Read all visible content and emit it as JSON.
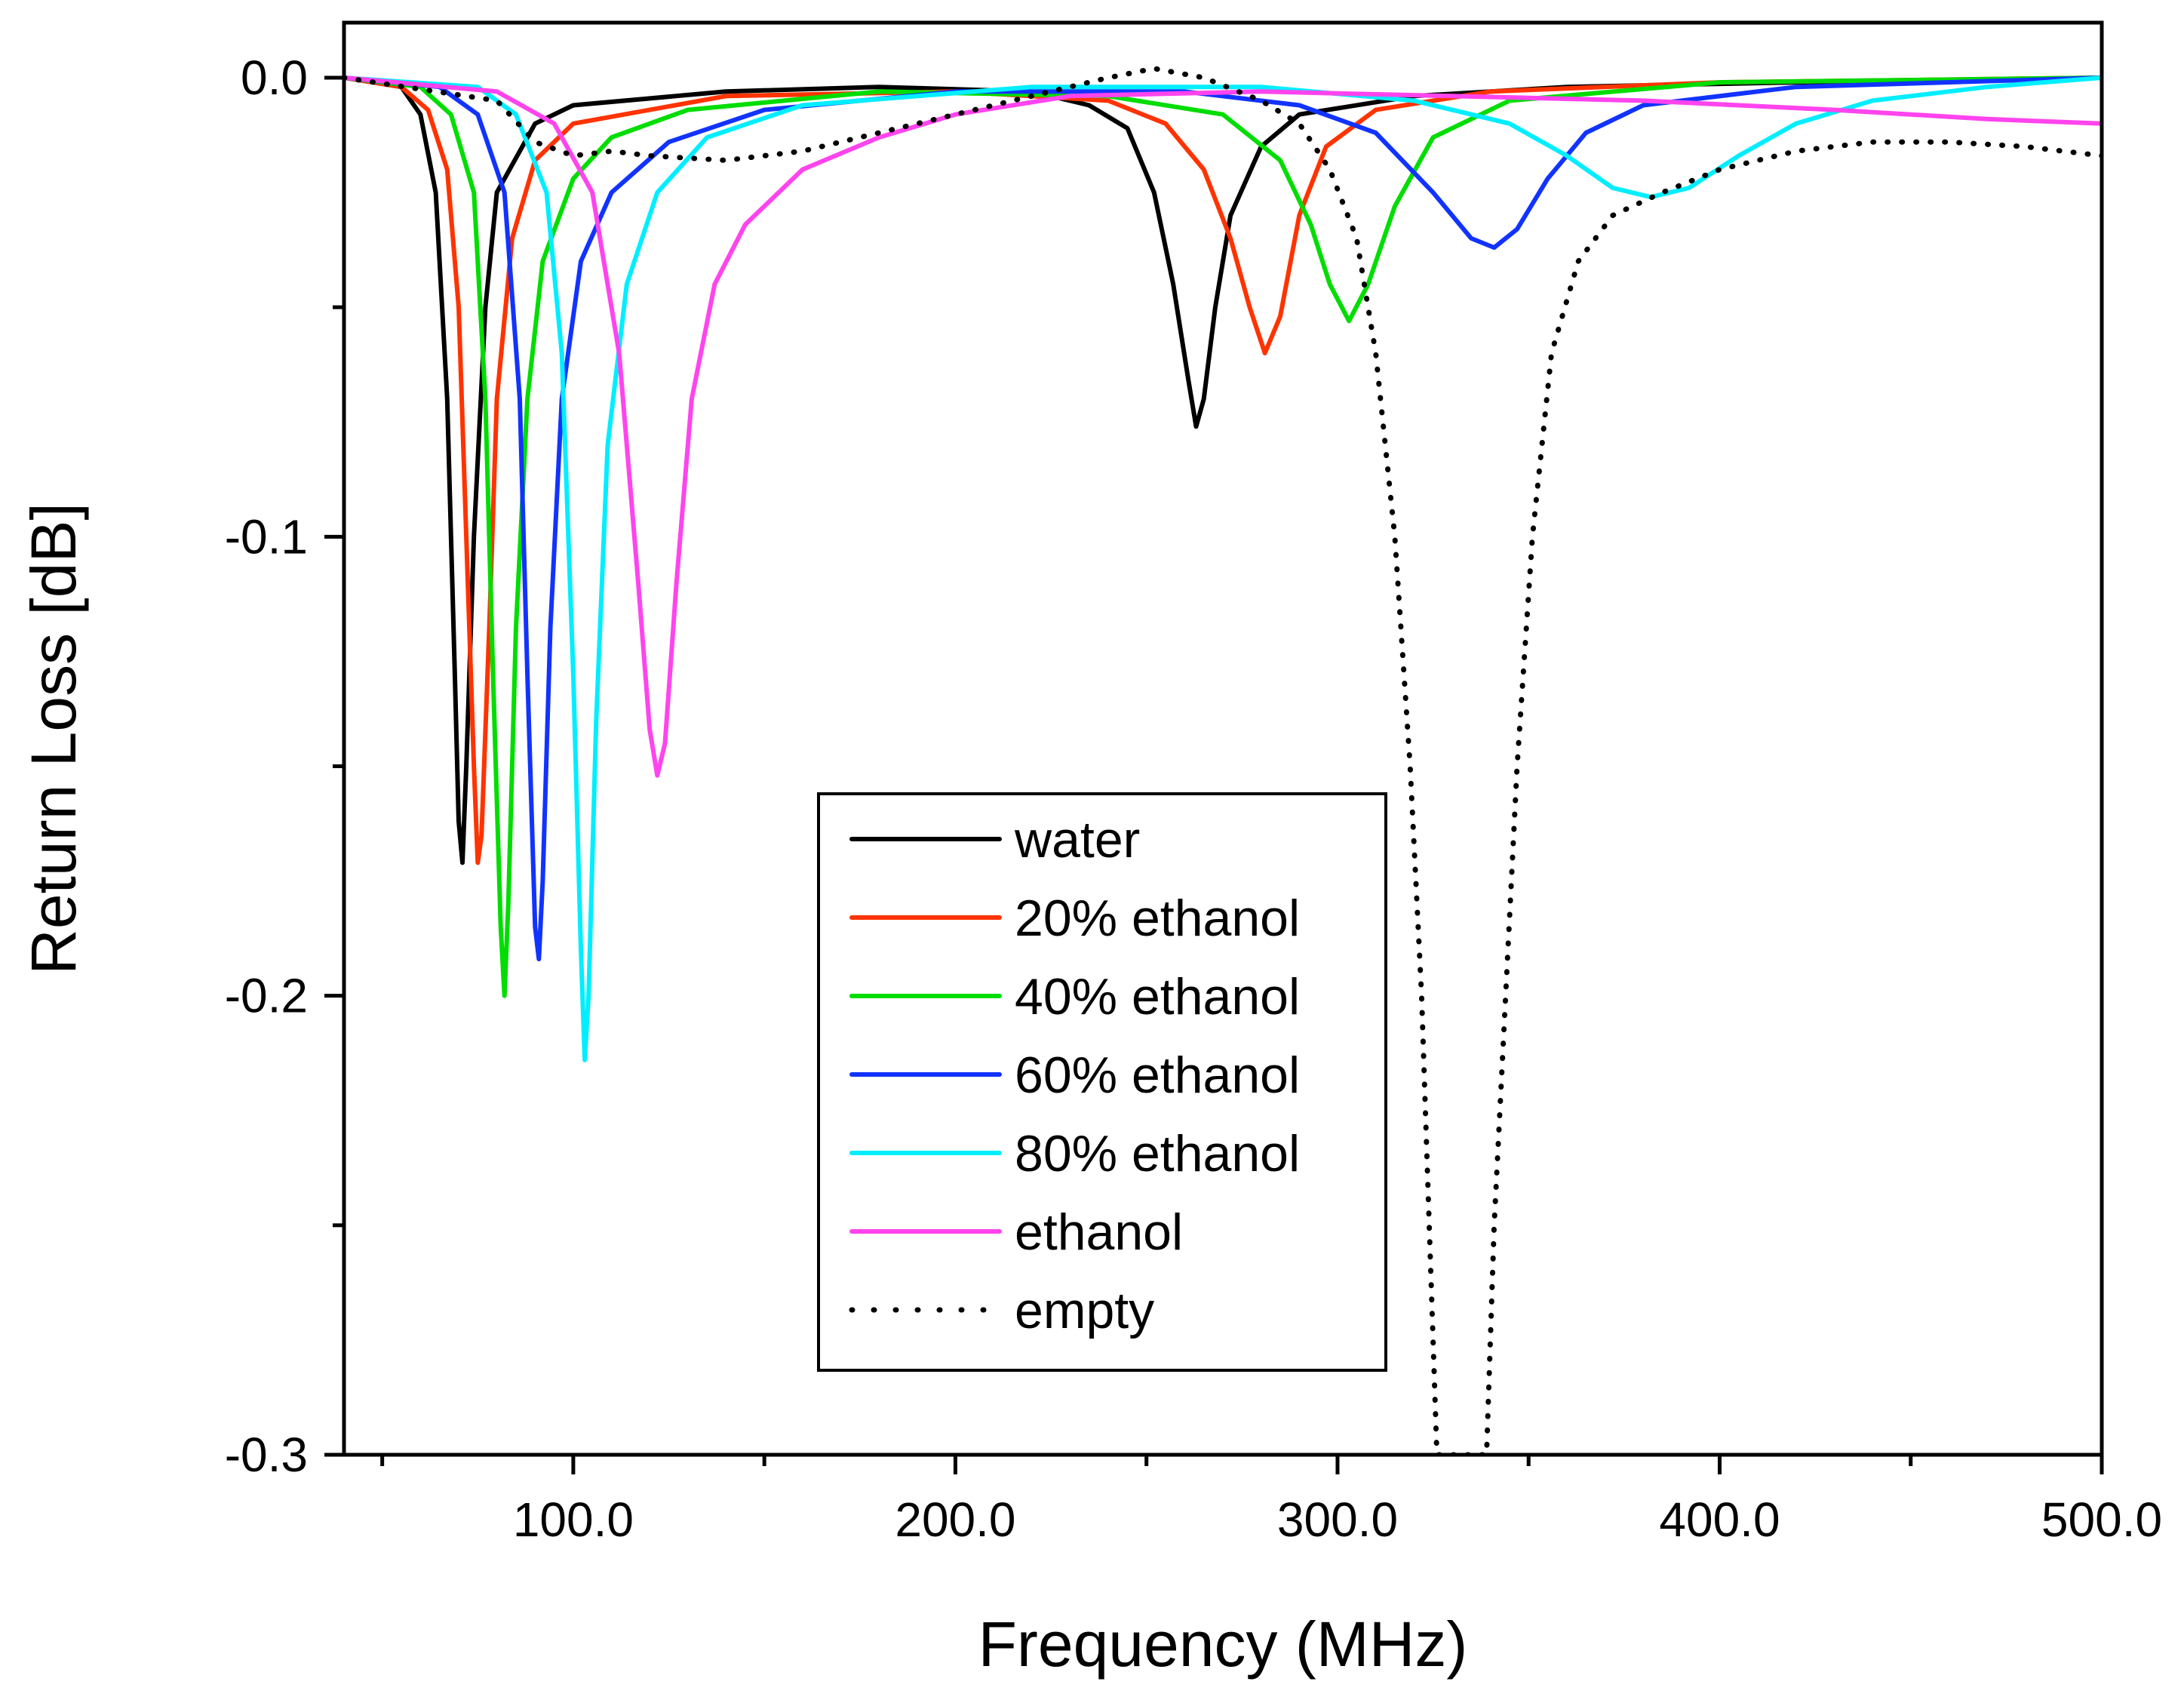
{
  "chart_data": {
    "type": "line",
    "title": "",
    "xlabel": "Frequency (MHz)",
    "ylabel": "Return Loss [dB]",
    "xlim": [
      40,
      500
    ],
    "ylim": [
      -0.3,
      0.012
    ],
    "x_ticks": [
      {
        "value": 100,
        "label": "100.0"
      },
      {
        "value": 200,
        "label": "200.0"
      },
      {
        "value": 300,
        "label": "300.0"
      },
      {
        "value": 400,
        "label": "400.0"
      },
      {
        "value": 500,
        "label": "500.0"
      }
    ],
    "x_minor_ticks": [
      50,
      150,
      250,
      350,
      450
    ],
    "y_ticks": [
      {
        "value": 0.0,
        "label": "0.0"
      },
      {
        "value": -0.1,
        "label": "-0.1"
      },
      {
        "value": -0.2,
        "label": "-0.2"
      },
      {
        "value": -0.3,
        "label": "-0.3"
      }
    ],
    "y_minor_ticks": [
      -0.05,
      -0.15,
      -0.25
    ],
    "grid": false,
    "legend_position": "center",
    "series": [
      {
        "name": "water",
        "color": "#000000",
        "dash": "solid",
        "points": [
          [
            40,
            0.0
          ],
          [
            55,
            -0.002
          ],
          [
            60,
            -0.008
          ],
          [
            64,
            -0.025
          ],
          [
            67,
            -0.07
          ],
          [
            69,
            -0.13
          ],
          [
            70,
            -0.162
          ],
          [
            71,
            -0.171
          ],
          [
            72,
            -0.15
          ],
          [
            74,
            -0.1
          ],
          [
            77,
            -0.05
          ],
          [
            80,
            -0.025
          ],
          [
            90,
            -0.01
          ],
          [
            100,
            -0.006
          ],
          [
            140,
            -0.003
          ],
          [
            180,
            -0.002
          ],
          [
            220,
            -0.003
          ],
          [
            235,
            -0.006
          ],
          [
            245,
            -0.011
          ],
          [
            252,
            -0.025
          ],
          [
            257,
            -0.045
          ],
          [
            261,
            -0.066
          ],
          [
            263,
            -0.076
          ],
          [
            265,
            -0.07
          ],
          [
            268,
            -0.05
          ],
          [
            272,
            -0.03
          ],
          [
            280,
            -0.015
          ],
          [
            290,
            -0.008
          ],
          [
            320,
            -0.004
          ],
          [
            360,
            -0.002
          ],
          [
            420,
            -0.001
          ],
          [
            500,
            0.0
          ]
        ]
      },
      {
        "name": "20% ethanol",
        "color": "#ff3300",
        "dash": "solid",
        "points": [
          [
            40,
            0.0
          ],
          [
            55,
            -0.002
          ],
          [
            62,
            -0.007
          ],
          [
            67,
            -0.02
          ],
          [
            70,
            -0.05
          ],
          [
            72,
            -0.1
          ],
          [
            74,
            -0.15
          ],
          [
            75,
            -0.171
          ],
          [
            76,
            -0.165
          ],
          [
            78,
            -0.12
          ],
          [
            80,
            -0.07
          ],
          [
            84,
            -0.035
          ],
          [
            90,
            -0.018
          ],
          [
            100,
            -0.01
          ],
          [
            140,
            -0.004
          ],
          [
            200,
            -0.003
          ],
          [
            240,
            -0.005
          ],
          [
            255,
            -0.01
          ],
          [
            265,
            -0.02
          ],
          [
            272,
            -0.035
          ],
          [
            277,
            -0.05
          ],
          [
            281,
            -0.06
          ],
          [
            285,
            -0.052
          ],
          [
            290,
            -0.03
          ],
          [
            297,
            -0.015
          ],
          [
            310,
            -0.007
          ],
          [
            340,
            -0.003
          ],
          [
            400,
            -0.001
          ],
          [
            500,
            0.0
          ]
        ]
      },
      {
        "name": "40% ethanol",
        "color": "#00dd00",
        "dash": "solid",
        "points": [
          [
            40,
            0.0
          ],
          [
            60,
            -0.002
          ],
          [
            68,
            -0.008
          ],
          [
            74,
            -0.025
          ],
          [
            77,
            -0.07
          ],
          [
            79,
            -0.13
          ],
          [
            81,
            -0.185
          ],
          [
            82,
            -0.2
          ],
          [
            83,
            -0.18
          ],
          [
            85,
            -0.12
          ],
          [
            88,
            -0.07
          ],
          [
            92,
            -0.04
          ],
          [
            100,
            -0.022
          ],
          [
            110,
            -0.013
          ],
          [
            130,
            -0.007
          ],
          [
            180,
            -0.003
          ],
          [
            240,
            -0.004
          ],
          [
            270,
            -0.008
          ],
          [
            285,
            -0.018
          ],
          [
            293,
            -0.032
          ],
          [
            298,
            -0.045
          ],
          [
            303,
            -0.053
          ],
          [
            308,
            -0.045
          ],
          [
            315,
            -0.028
          ],
          [
            325,
            -0.013
          ],
          [
            345,
            -0.005
          ],
          [
            400,
            -0.001
          ],
          [
            500,
            0.0
          ]
        ]
      },
      {
        "name": "60% ethanol",
        "color": "#1133ff",
        "dash": "solid",
        "points": [
          [
            40,
            0.0
          ],
          [
            65,
            -0.002
          ],
          [
            75,
            -0.008
          ],
          [
            82,
            -0.025
          ],
          [
            86,
            -0.07
          ],
          [
            88,
            -0.13
          ],
          [
            90,
            -0.185
          ],
          [
            91,
            -0.192
          ],
          [
            92,
            -0.175
          ],
          [
            94,
            -0.12
          ],
          [
            97,
            -0.07
          ],
          [
            102,
            -0.04
          ],
          [
            110,
            -0.025
          ],
          [
            125,
            -0.014
          ],
          [
            150,
            -0.007
          ],
          [
            200,
            -0.003
          ],
          [
            260,
            -0.003
          ],
          [
            290,
            -0.006
          ],
          [
            310,
            -0.012
          ],
          [
            325,
            -0.025
          ],
          [
            335,
            -0.035
          ],
          [
            341,
            -0.037
          ],
          [
            347,
            -0.033
          ],
          [
            355,
            -0.022
          ],
          [
            365,
            -0.012
          ],
          [
            380,
            -0.006
          ],
          [
            420,
            -0.002
          ],
          [
            500,
            0.0
          ]
        ]
      },
      {
        "name": "80% ethanol",
        "color": "#00eeff",
        "dash": "solid",
        "points": [
          [
            40,
            0.0
          ],
          [
            75,
            -0.002
          ],
          [
            85,
            -0.008
          ],
          [
            93,
            -0.025
          ],
          [
            97,
            -0.06
          ],
          [
            100,
            -0.13
          ],
          [
            102,
            -0.19
          ],
          [
            103,
            -0.214
          ],
          [
            104,
            -0.2
          ],
          [
            106,
            -0.14
          ],
          [
            109,
            -0.08
          ],
          [
            114,
            -0.045
          ],
          [
            122,
            -0.025
          ],
          [
            135,
            -0.013
          ],
          [
            160,
            -0.006
          ],
          [
            220,
            -0.002
          ],
          [
            280,
            -0.002
          ],
          [
            320,
            -0.005
          ],
          [
            345,
            -0.01
          ],
          [
            360,
            -0.017
          ],
          [
            372,
            -0.024
          ],
          [
            382,
            -0.026
          ],
          [
            392,
            -0.024
          ],
          [
            405,
            -0.017
          ],
          [
            420,
            -0.01
          ],
          [
            440,
            -0.005
          ],
          [
            470,
            -0.002
          ],
          [
            500,
            0.0
          ]
        ]
      },
      {
        "name": "ethanol",
        "color": "#ff44ee",
        "dash": "solid",
        "points": [
          [
            40,
            0.0
          ],
          [
            80,
            -0.003
          ],
          [
            95,
            -0.01
          ],
          [
            105,
            -0.025
          ],
          [
            112,
            -0.06
          ],
          [
            117,
            -0.11
          ],
          [
            120,
            -0.142
          ],
          [
            122,
            -0.152
          ],
          [
            124,
            -0.145
          ],
          [
            127,
            -0.11
          ],
          [
            131,
            -0.07
          ],
          [
            137,
            -0.045
          ],
          [
            145,
            -0.032
          ],
          [
            160,
            -0.02
          ],
          [
            180,
            -0.013
          ],
          [
            200,
            -0.008
          ],
          [
            230,
            -0.004
          ],
          [
            280,
            -0.003
          ],
          [
            330,
            -0.004
          ],
          [
            380,
            -0.005
          ],
          [
            430,
            -0.007
          ],
          [
            470,
            -0.009
          ],
          [
            500,
            -0.01
          ]
        ]
      },
      {
        "name": "empty",
        "color": "#000000",
        "dash": "dotted",
        "points": [
          [
            40,
            0.0
          ],
          [
            80,
            -0.005
          ],
          [
            90,
            -0.014
          ],
          [
            100,
            -0.017
          ],
          [
            110,
            -0.016
          ],
          [
            120,
            -0.017
          ],
          [
            140,
            -0.018
          ],
          [
            160,
            -0.016
          ],
          [
            180,
            -0.012
          ],
          [
            200,
            -0.008
          ],
          [
            220,
            -0.004
          ],
          [
            240,
            0.0
          ],
          [
            252,
            0.002
          ],
          [
            265,
            0.0
          ],
          [
            280,
            -0.005
          ],
          [
            290,
            -0.01
          ],
          [
            298,
            -0.02
          ],
          [
            305,
            -0.035
          ],
          [
            310,
            -0.06
          ],
          [
            315,
            -0.1
          ],
          [
            319,
            -0.15
          ],
          [
            322,
            -0.2
          ],
          [
            324,
            -0.25
          ],
          [
            326,
            -0.3
          ],
          [
            339,
            -0.3
          ],
          [
            341,
            -0.25
          ],
          [
            344,
            -0.2
          ],
          [
            347,
            -0.15
          ],
          [
            351,
            -0.1
          ],
          [
            356,
            -0.06
          ],
          [
            363,
            -0.04
          ],
          [
            372,
            -0.03
          ],
          [
            385,
            -0.025
          ],
          [
            400,
            -0.02
          ],
          [
            420,
            -0.016
          ],
          [
            440,
            -0.014
          ],
          [
            460,
            -0.014
          ],
          [
            480,
            -0.015
          ],
          [
            500,
            -0.017
          ]
        ]
      }
    ]
  }
}
